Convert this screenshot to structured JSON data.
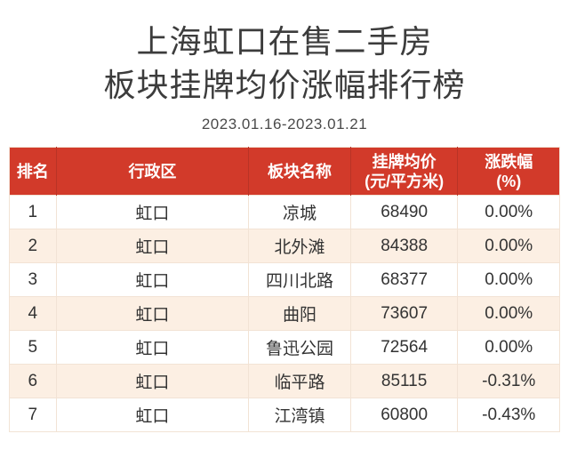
{
  "title": {
    "line1": "上海虹口在售二手房",
    "line2": "板块挂牌均价涨幅排行榜",
    "date_range": "2023.01.16-2023.01.21"
  },
  "header": {
    "rank": "排名",
    "district": "行政区",
    "block": "板块名称",
    "price_line1": "挂牌均价",
    "price_line2": "(元/平方米)",
    "change_line1": "涨跌幅",
    "change_line2": "(%)"
  },
  "colors": {
    "header_bg": "#d23a2a",
    "header_separator": "#b93326",
    "header_text": "#ffffff",
    "row_stripe": "#fcefe3",
    "row_plain": "#ffffff",
    "cell_border": "#f2e3d5",
    "title_text": "#3c3c3c",
    "body_text": "#333333"
  },
  "chart_data": {
    "type": "table",
    "title": "上海虹口在售二手房板块挂牌均价涨幅排行榜",
    "subtitle": "2023.01.16-2023.01.21",
    "columns": [
      "排名",
      "行政区",
      "板块名称",
      "挂牌均价(元/平方米)",
      "涨跌幅(%)"
    ],
    "rows": [
      [
        "1",
        "虹口",
        "凉城",
        "68490",
        "0.00%"
      ],
      [
        "2",
        "虹口",
        "北外滩",
        "84388",
        "0.00%"
      ],
      [
        "3",
        "虹口",
        "四川北路",
        "68377",
        "0.00%"
      ],
      [
        "4",
        "虹口",
        "曲阳",
        "73607",
        "0.00%"
      ],
      [
        "5",
        "虹口",
        "鲁迅公园",
        "72564",
        "0.00%"
      ],
      [
        "6",
        "虹口",
        "临平路",
        "85115",
        "-0.31%"
      ],
      [
        "7",
        "虹口",
        "江湾镇",
        "60800",
        "-0.43%"
      ]
    ]
  }
}
